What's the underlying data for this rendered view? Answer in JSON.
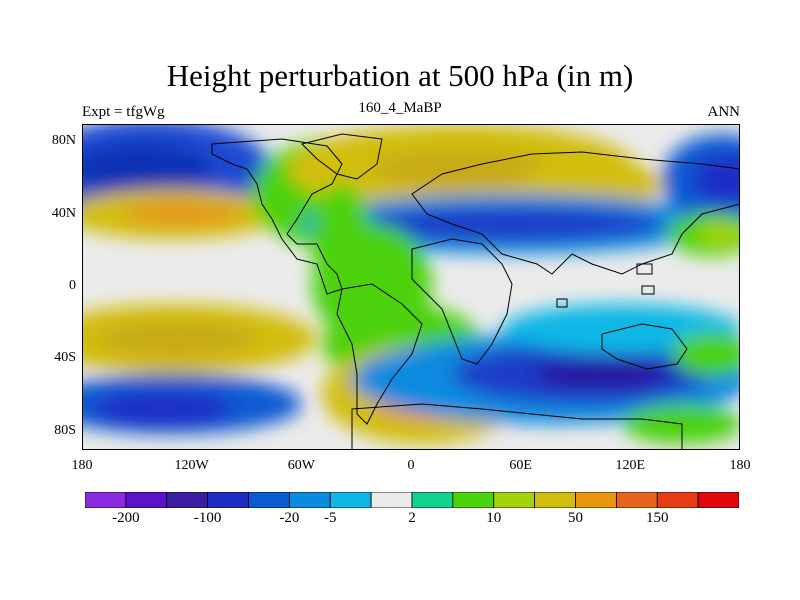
{
  "header": {
    "title": "Height perturbation at 500 hPa (in m)",
    "left_label": "Expt = tfgWg",
    "center_label": "160_4_MaBP",
    "right_label": "ANN"
  },
  "map": {
    "y_ticks": [
      "80N",
      "40N",
      "0",
      "40S",
      "80S"
    ],
    "y_tick_lat": [
      80,
      40,
      0,
      -40,
      -80
    ],
    "x_ticks": [
      "180",
      "120W",
      "60W",
      "0",
      "60E",
      "120E",
      "180"
    ],
    "x_tick_lon": [
      -180,
      -120,
      -60,
      0,
      60,
      120,
      180
    ],
    "lon_range": [
      -180,
      180
    ],
    "lat_range": [
      -90,
      90
    ],
    "ocean_color": "#ebebeb",
    "coastline_color": "#000000"
  },
  "colorbar": {
    "colors": [
      "#8a2be2",
      "#5a14c8",
      "#3c1ea5",
      "#1e2dc8",
      "#0a5ad2",
      "#0b8be0",
      "#0fb7e6",
      "#ebebeb",
      "#14d28c",
      "#4bd20f",
      "#a5d20f",
      "#d2be0f",
      "#e6960f",
      "#e6641e",
      "#e63c14",
      "#e10a0a"
    ],
    "labels": [
      "-200",
      "-100",
      "-20",
      "-5",
      "2",
      "10",
      "50",
      "150"
    ],
    "label_after_box": [
      1,
      3,
      5,
      6,
      8,
      10,
      12,
      14
    ]
  }
}
